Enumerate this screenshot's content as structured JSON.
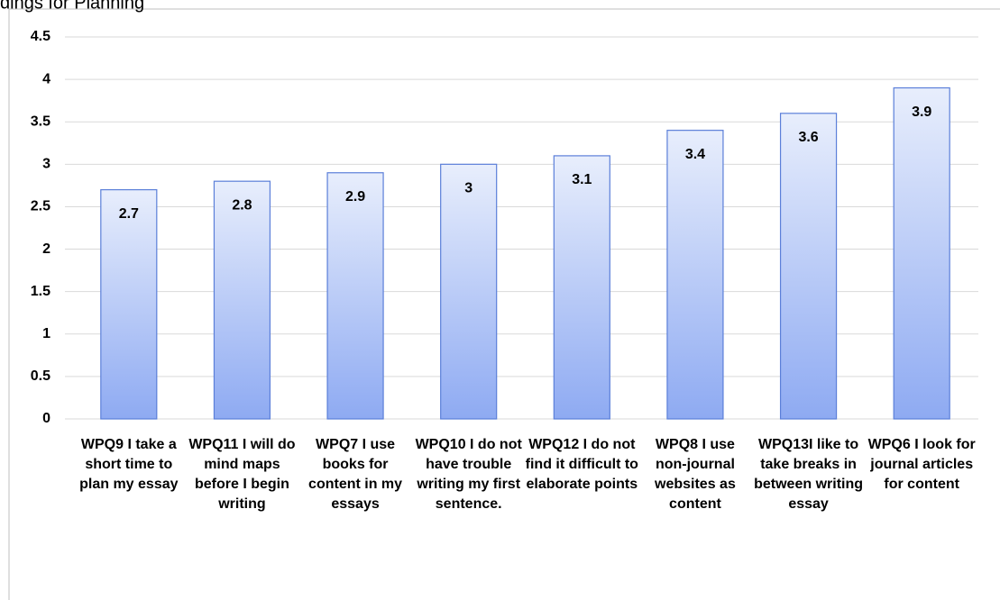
{
  "chart_data": {
    "type": "bar",
    "title": "dings for Planning",
    "categories": [
      "WPQ9 I take a short time to plan my essay",
      "WPQ11 I will do mind maps before I begin writing",
      "WPQ7 I use books for content in my essays",
      "WPQ10 I do not have trouble writing my first sentence.",
      "WPQ12 I do not find it difficult to elaborate points",
      "WPQ8 I use non-journal websites as content",
      "WPQ13I like to take breaks in between writing essay",
      "WPQ6 I look for journal articles for content"
    ],
    "values": [
      2.7,
      2.8,
      2.9,
      3,
      3.1,
      3.4,
      3.6,
      3.9
    ],
    "color": "#8eaaf2",
    "ylim": [
      0,
      4.5
    ],
    "yticks": [
      0,
      0.5,
      1,
      1.5,
      2,
      2.5,
      3,
      3.5,
      4,
      4.5
    ],
    "grid": true
  }
}
